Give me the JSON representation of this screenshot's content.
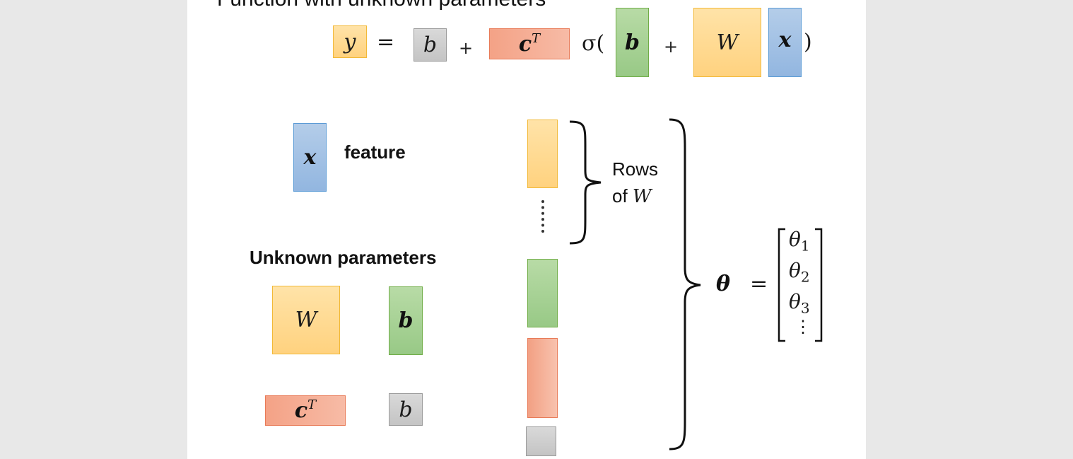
{
  "title": "Function with unknown parameters",
  "equation": {
    "y": "y",
    "equals": "=",
    "b_scalar": "b",
    "plus1": "+",
    "cT_base": "c",
    "cT_sup": "T",
    "sigma_open": "σ(",
    "b_vector": "b",
    "plus2": "+",
    "W": "W",
    "x": "x",
    "close": ")"
  },
  "feature": {
    "symbol": "x",
    "label": "feature"
  },
  "unknown": {
    "heading": "Unknown parameters",
    "W": "W",
    "b_vector": "b",
    "cT_base": "c",
    "cT_sup": "T",
    "b_scalar": "b"
  },
  "rows_label": {
    "line1": "Rows",
    "line2_prefix": "of ",
    "line2_var": "W"
  },
  "theta": {
    "symbol": "θ",
    "equals": "=",
    "entries": [
      {
        "base": "θ",
        "sub": "1"
      },
      {
        "base": "θ",
        "sub": "2"
      },
      {
        "base": "θ",
        "sub": "3"
      }
    ],
    "ellipsis": "⋮"
  },
  "colors": {
    "orange": "#ffd68a",
    "gray": "#c8c8c8",
    "salmon": "#f4a286",
    "green": "#a9d18e",
    "blue": "#9dc3e6"
  }
}
